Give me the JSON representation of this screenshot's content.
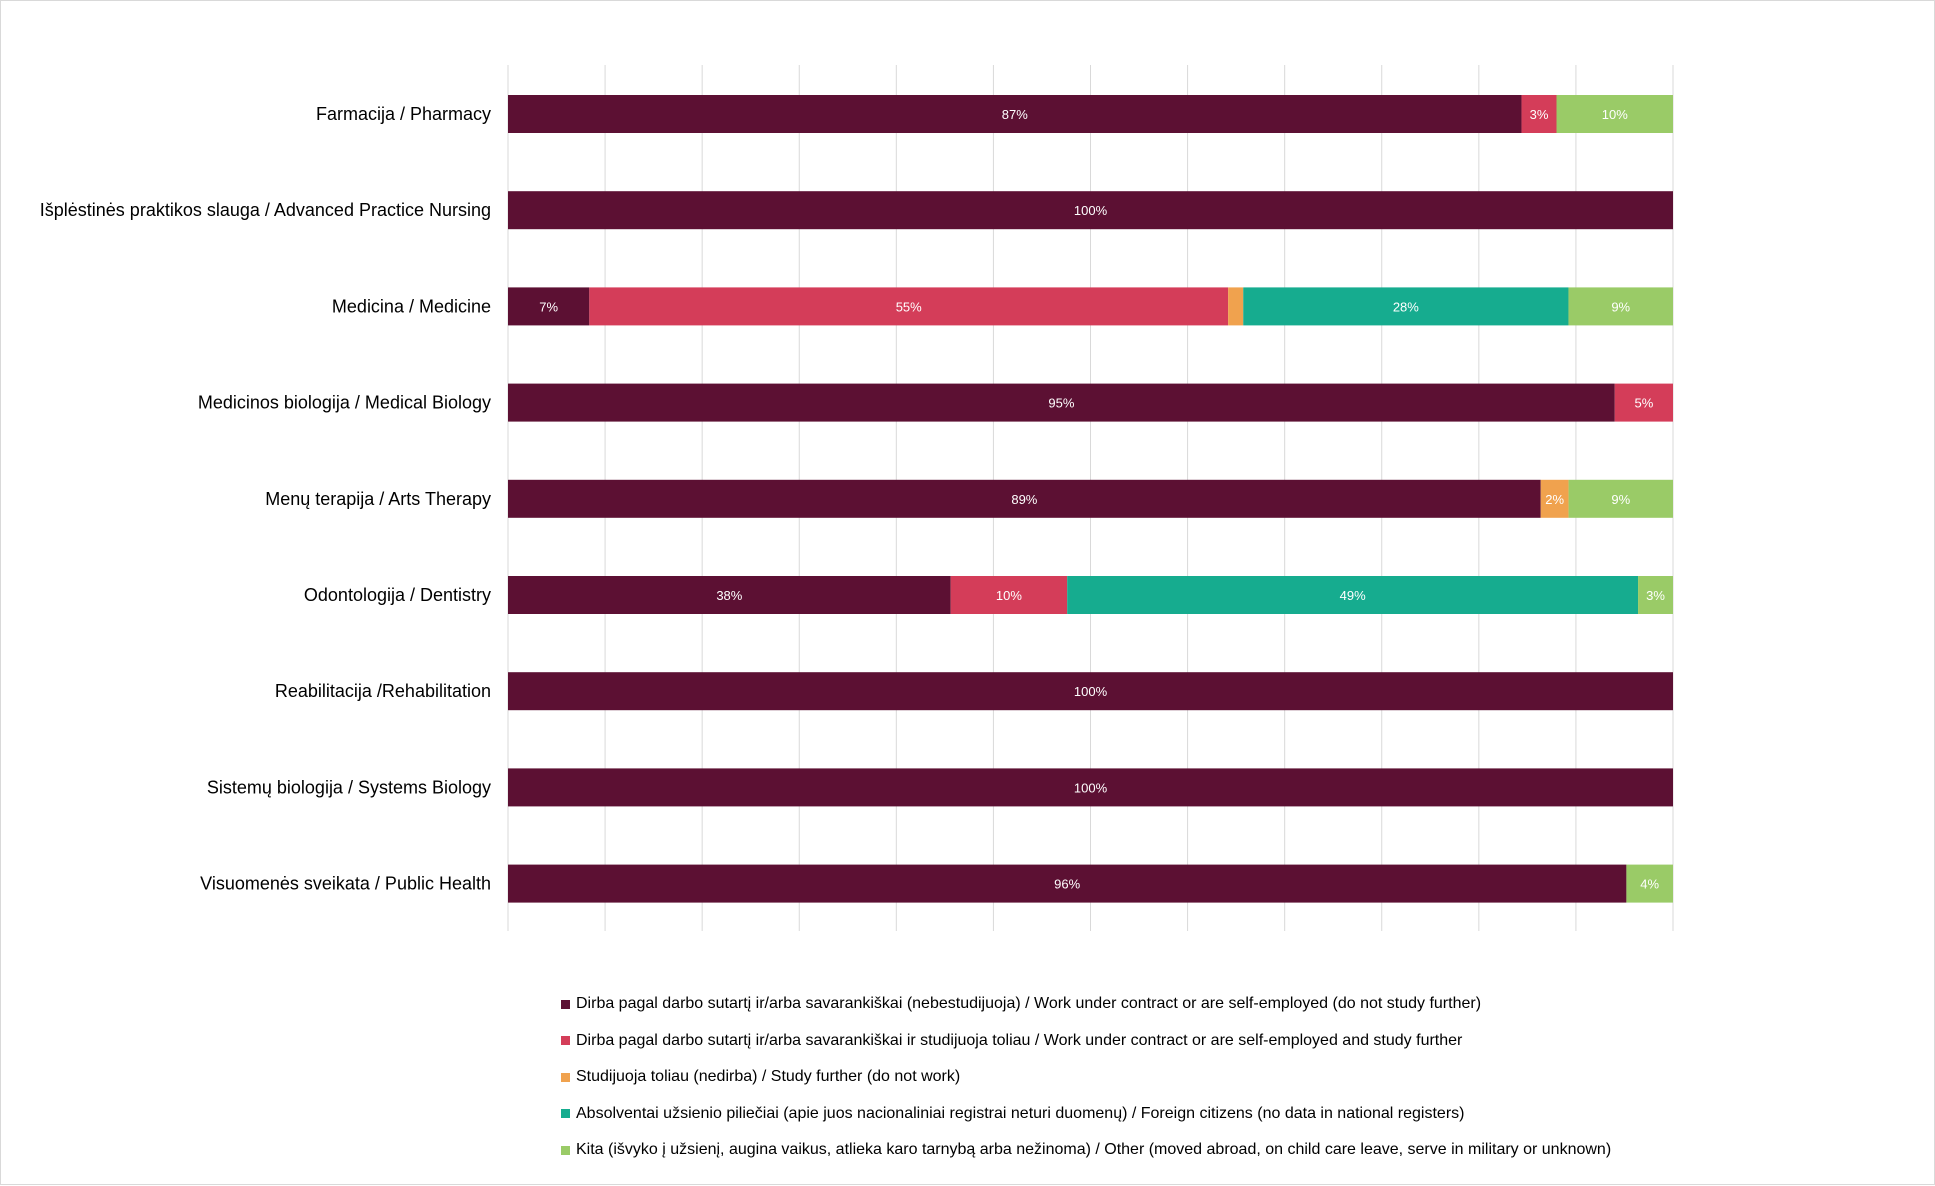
{
  "chart_data": {
    "type": "bar",
    "orientation": "horizontal",
    "stacked": "percent",
    "title": "",
    "xlabel": "",
    "ylabel": "",
    "xlim": [
      0,
      100
    ],
    "grid": true,
    "legend_position": "bottom",
    "categories": [
      "Farmacija / Pharmacy",
      "Išplėstinės praktikos slauga / Advanced Practice Nursing",
      "Medicina / Medicine",
      "Medicinos biologija / Medical Biology",
      "Menų terapija / Arts Therapy ",
      "Odontologija / Dentistry",
      "Reabilitacija /Rehabilitation",
      "Sistemų biologija / Systems Biology ",
      "Visuomenės sveikata / Public Health"
    ],
    "series": [
      {
        "name": "Dirba pagal darbo sutartį ir/arba savarankiškai (nebestudijuoja) / Work under contract or are self-employed (do not study further)",
        "color": "#5c1033",
        "values": [
          87,
          100,
          7,
          95,
          89,
          38,
          100,
          100,
          96
        ],
        "labels": [
          "87%",
          "100%",
          "7%",
          "95%",
          "89%",
          "38%",
          "100%",
          "100%",
          "96%"
        ]
      },
      {
        "name": "Dirba pagal darbo sutartį ir/arba savarankiškai  ir studijuoja toliau / Work under contract or are self-employed and study further",
        "color": "#d43d59",
        "values": [
          3,
          0,
          55,
          5,
          0,
          10,
          0,
          0,
          0
        ],
        "labels": [
          "3%",
          "",
          "55%",
          "5%",
          "",
          "10%",
          "",
          "",
          ""
        ]
      },
      {
        "name": "Studijuoja toliau (nedirba) / Study further (do not work)",
        "color": "#f0a24e",
        "values": [
          0,
          0,
          1.3,
          0,
          2.4,
          0,
          0,
          0,
          0
        ],
        "labels": [
          "",
          "",
          "",
          "",
          "2%",
          "",
          "",
          "",
          ""
        ]
      },
      {
        "name": "Absolventai užsienio piliečiai (apie juos nacionaliniai registrai neturi duomenų) / Foreign citizens (no data in national registers)",
        "color": "#16ac8f",
        "values": [
          0,
          0,
          28,
          0,
          0,
          49,
          0,
          0,
          0
        ],
        "labels": [
          "",
          "",
          "28%",
          "",
          "",
          "49%",
          "",
          "",
          ""
        ]
      },
      {
        "name": "Kita (išvyko į užsienį, augina vaikus, atlieka karo tarnybą arba nežinoma) / Other (moved abroad, on child care leave, serve in military or unknown)",
        "color": "#9acb67",
        "values": [
          10,
          0,
          9,
          0,
          9,
          3,
          0,
          0,
          4
        ],
        "labels": [
          "10%",
          "",
          "9%",
          "",
          "9%",
          "3%",
          "",
          "",
          "4%"
        ]
      }
    ]
  }
}
